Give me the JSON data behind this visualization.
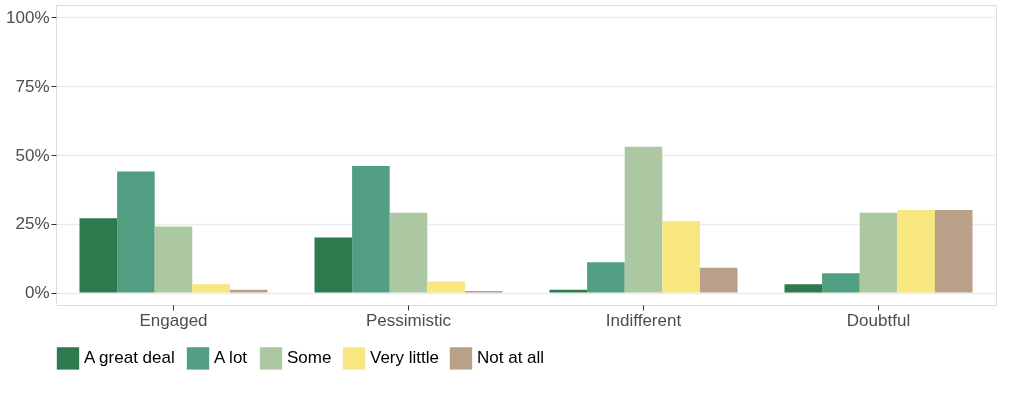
{
  "chart_data": {
    "type": "bar",
    "categories": [
      "Engaged",
      "Pessimistic",
      "Indifferent",
      "Doubtful"
    ],
    "series": [
      {
        "name": "A great deal",
        "color": "#2e7a4e",
        "values": [
          27,
          20,
          1,
          3
        ]
      },
      {
        "name": "A lot",
        "color": "#519e82",
        "values": [
          44,
          46,
          11,
          7
        ]
      },
      {
        "name": "Some",
        "color": "#acc8a2",
        "values": [
          24,
          29,
          53,
          29
        ]
      },
      {
        "name": "Very little",
        "color": "#f8e681",
        "values": [
          3,
          4,
          26,
          30
        ]
      },
      {
        "name": "Not at all",
        "color": "#b8a089",
        "values": [
          1,
          0.6,
          9,
          30
        ]
      }
    ],
    "ylim": [
      -4.5,
      104.5
    ],
    "yticks": [
      {
        "value": 0,
        "label": "0%"
      },
      {
        "value": 25,
        "label": "25%"
      },
      {
        "value": 50,
        "label": "50%"
      },
      {
        "value": 75,
        "label": "75%"
      },
      {
        "value": 100,
        "label": "100%"
      }
    ],
    "grid": "y",
    "legend": "bottom"
  }
}
